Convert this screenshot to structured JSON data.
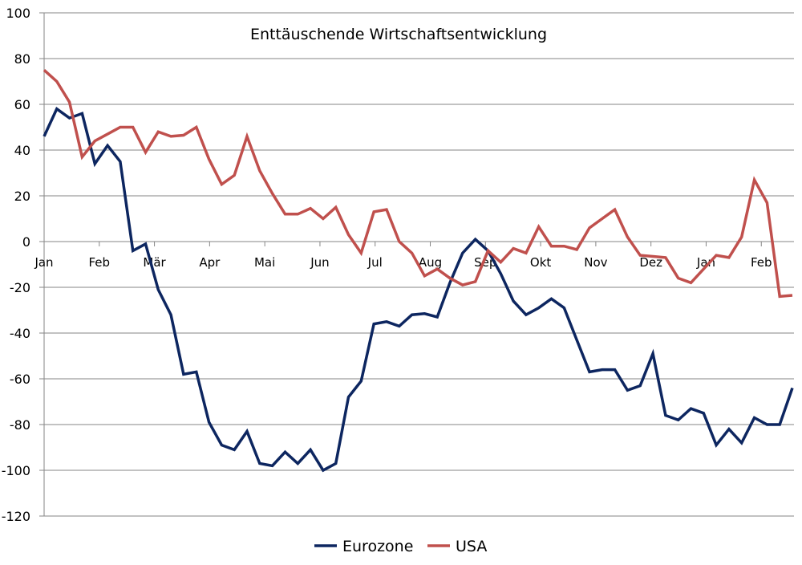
{
  "chart_data": {
    "type": "line",
    "title": "Enttäuschende Wirtschaftsentwicklung",
    "xlabel": "",
    "ylabel": "",
    "ylim": [
      -120,
      100
    ],
    "yticks": [
      100,
      80,
      60,
      40,
      20,
      0,
      -20,
      -40,
      -60,
      -80,
      -100,
      -120
    ],
    "x_tick_labels": [
      "Jan",
      "Feb",
      "Mär",
      "Apr",
      "Mai",
      "Jun",
      "Jul",
      "Aug",
      "Sep",
      "Okt",
      "Nov",
      "Dez",
      "Jan",
      "Feb"
    ],
    "grid": true,
    "legend_position": "bottom",
    "series": [
      {
        "name": "Eurozone",
        "color": "#0d2660",
        "values": [
          46,
          58,
          54,
          56,
          34,
          42,
          35,
          -4,
          -1,
          -21,
          -32,
          -58,
          -57,
          -79,
          -89,
          -91,
          -83,
          -97,
          -98,
          -92,
          -97,
          -91,
          -100,
          -97,
          -68,
          -61,
          -36,
          -35,
          -37,
          -32,
          -31.5,
          -33,
          -18,
          -5,
          1,
          -4,
          -14,
          -26,
          -32,
          -29,
          -25,
          -29,
          -43,
          -57,
          -56,
          -56,
          -65,
          -63,
          -49,
          -76,
          -78,
          -73,
          -75,
          -89,
          -82,
          -88,
          -77,
          -80,
          -80,
          -64
        ]
      },
      {
        "name": "USA",
        "color": "#c0504d",
        "values": [
          75,
          70,
          61,
          37,
          44,
          47,
          50,
          50,
          39,
          48,
          46,
          46.5,
          50,
          36,
          25,
          29,
          46,
          31,
          21,
          12,
          12,
          14.5,
          10,
          15,
          3,
          -5,
          13,
          14,
          0,
          -5,
          -15,
          -12,
          -16,
          -19,
          -17.5,
          -4,
          -9,
          -3,
          -5,
          6.5,
          -2,
          -2,
          -3.5,
          6,
          10,
          14,
          2,
          -6,
          -6.5,
          -7,
          -16,
          -18,
          -12,
          -6,
          -7,
          2,
          27,
          17,
          -24,
          -23.5
        ]
      }
    ]
  }
}
